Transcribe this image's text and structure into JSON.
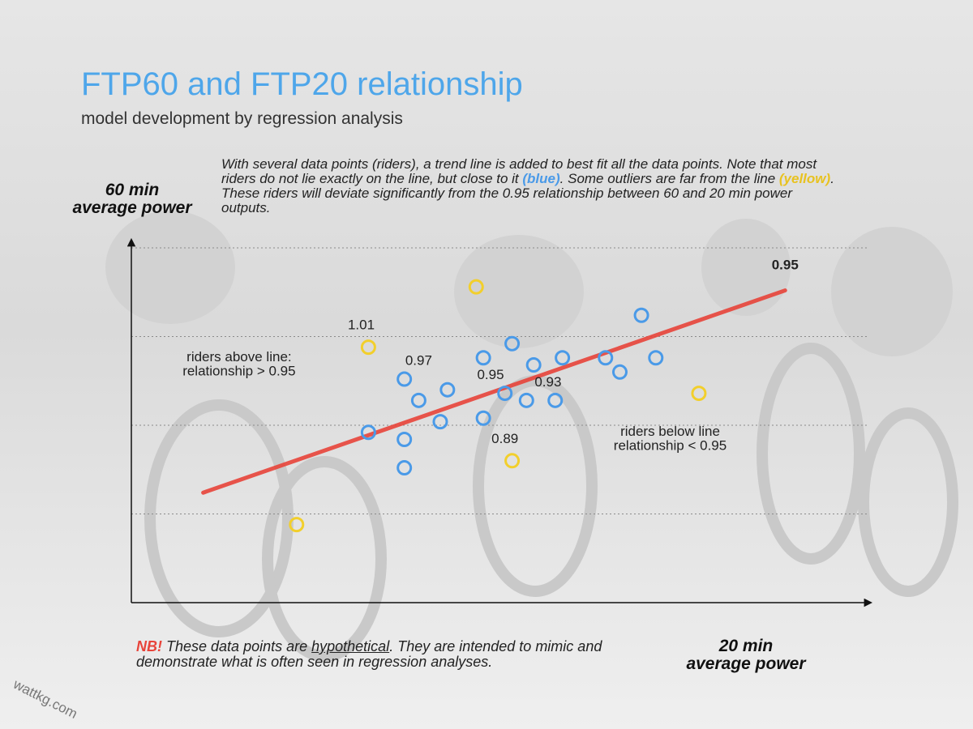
{
  "header": {
    "title": "FTP60 and FTP20 relationship",
    "subtitle": "model development by regression analysis"
  },
  "description": {
    "part1": "With several data points (riders), a trend line is added to best fit all the data points. Note that most riders do not lie exactly on the line, but close to it ",
    "blue_label": "(blue)",
    "part2": ". Some outliers are far from the line ",
    "yellow_label": "(yellow)",
    "part3": ". These riders will deviate significantly from the 0.95 relationship between 60 and 20 min power outputs."
  },
  "axes": {
    "y_label_line1": "60 min",
    "y_label_line2": "average power",
    "x_label_line1": "20 min",
    "x_label_line2": "average power"
  },
  "note": {
    "tag": "NB!",
    "part1": " These data points are ",
    "underlined": "hypothetical",
    "part2": ". They are intended to mimic and demonstrate what is often seen in regression analyses."
  },
  "watermark": "wattkg.com",
  "colors": {
    "title": "#4ea6ea",
    "blue_points": "#4a9ae8",
    "yellow_points": "#f2cf2c",
    "trend_line": "#e8443a",
    "trend_label": "#e8443a"
  },
  "chart_data": {
    "type": "scatter",
    "xlabel": "20 min average power",
    "ylabel": "60 min average power",
    "xlim": [
      0,
      100
    ],
    "ylim": [
      0,
      100
    ],
    "grid": "horizontal dotted",
    "series": [
      {
        "name": "blue",
        "color": "#4a9ae8",
        "points": [
          [
            33,
            48
          ],
          [
            38,
            38
          ],
          [
            38,
            46
          ],
          [
            40,
            57
          ],
          [
            38,
            63
          ],
          [
            44,
            60
          ],
          [
            43,
            51
          ],
          [
            49,
            52
          ],
          [
            49,
            69
          ],
          [
            52,
            59
          ],
          [
            53,
            73
          ],
          [
            55,
            57
          ],
          [
            56,
            67
          ],
          [
            59,
            57
          ],
          [
            60,
            69
          ],
          [
            68,
            65
          ],
          [
            73,
            69
          ],
          [
            66,
            69
          ],
          [
            71,
            81
          ]
        ]
      },
      {
        "name": "yellow",
        "color": "#f2cf2c",
        "points": [
          [
            48,
            89
          ],
          [
            33,
            72
          ],
          [
            53,
            40
          ],
          [
            79,
            59
          ],
          [
            23,
            22
          ]
        ]
      },
      {
        "name": "trend line",
        "color": "#e8443a",
        "points": [
          [
            10,
            31
          ],
          [
            91,
            88
          ]
        ]
      }
    ],
    "annotations": [
      {
        "text": "1.01",
        "x": 32,
        "y": 77
      },
      {
        "text": "0.97",
        "x": 40,
        "y": 67
      },
      {
        "text": "0.95",
        "x": 50,
        "y": 63
      },
      {
        "text": "0.93",
        "x": 58,
        "y": 61
      },
      {
        "text": "0.89",
        "x": 52,
        "y": 45
      },
      {
        "text": "0.95",
        "x": 91,
        "y": 94,
        "style": "trend"
      },
      {
        "text": "riders above line:",
        "x": 15,
        "y": 68
      },
      {
        "text": "relationship > 0.95",
        "x": 15,
        "y": 64
      },
      {
        "text": "riders below line",
        "x": 75,
        "y": 47
      },
      {
        "text": "relationship < 0.95",
        "x": 75,
        "y": 43
      }
    ]
  }
}
